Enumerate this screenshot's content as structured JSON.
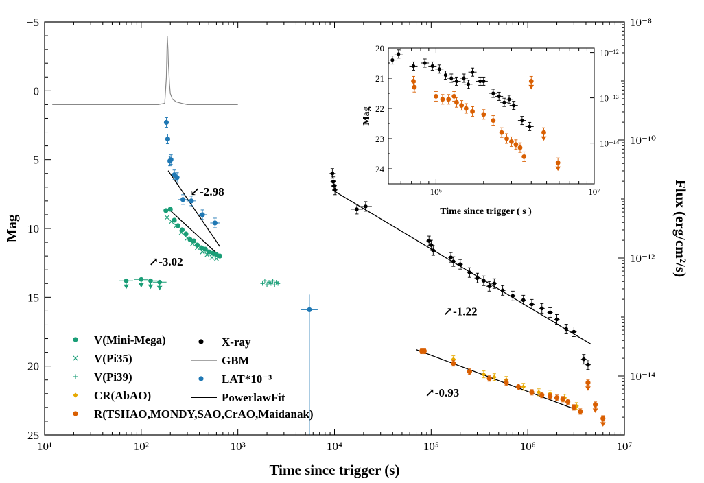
{
  "chart_data": {
    "type": "scatter",
    "title": "",
    "xlabel": "Time since trigger (s)",
    "ylabel": "Mag",
    "ylabel_right": "Flux (erg/cm²/s)",
    "xscale": "log",
    "xlim": [
      10,
      10000000
    ],
    "ylim": [
      -5,
      25
    ],
    "y_inverted": true,
    "right_ylim": [
      1e-15,
      1e-08
    ],
    "x_ticks": [
      10,
      100,
      1000,
      10000,
      100000,
      1000000,
      10000000
    ],
    "x_tick_labels": [
      "10¹",
      "10²",
      "10³",
      "10⁴",
      "10⁵",
      "10⁶",
      "10⁷"
    ],
    "y_ticks": [
      -5,
      0,
      5,
      10,
      15,
      20,
      25
    ],
    "y_tick_labels": [
      "−5",
      "0",
      "5",
      "10",
      "15",
      "20",
      "25"
    ],
    "right_ticks": [
      1e-14,
      1e-12,
      1e-10,
      1e-08
    ],
    "right_tick_labels": [
      "10⁻¹⁴",
      "10⁻¹²",
      "10⁻¹⁰",
      "10⁻⁸"
    ],
    "legend": {
      "position": "bottom-left",
      "col1": [
        {
          "label": "V(Mini-Mega)",
          "color": "#1a9e77",
          "marker": "dot"
        },
        {
          "label": "V(Pi35)",
          "color": "#1a9e77",
          "marker": "x"
        },
        {
          "label": "V(Pi39)",
          "color": "#1a9e77",
          "marker": "plus"
        },
        {
          "label": "CR(AbAO)",
          "color": "#e6a800",
          "marker": "diamond"
        },
        {
          "label": "R(TSHAO,MONDY,SAO,CrAO,Maidanak)",
          "color": "#d95f02",
          "marker": "dot"
        }
      ],
      "col2": [
        {
          "label": "X-ray",
          "color": "#000000",
          "marker": "dot"
        },
        {
          "label": "GBM",
          "color": "#888888",
          "marker": "line"
        },
        {
          "label": "LAT*10⁻³",
          "color": "#1f78b4",
          "marker": "dot"
        },
        {
          "label": "PowerlawFit",
          "color": "#000000",
          "marker": "line"
        }
      ]
    },
    "annotations": [
      {
        "text": "↙-2.98",
        "x": 480,
        "y": 7.6
      },
      {
        "text": "↗-3.02",
        "x": 180,
        "y": 12.7
      },
      {
        "text": "↗-1.22",
        "x": 200000,
        "y": 16.3
      },
      {
        "text": "↗-0.93",
        "x": 130000,
        "y": 22.2
      }
    ],
    "fits": [
      {
        "name": "LAT fit",
        "x": [
          190,
          650
        ],
        "y": [
          5.8,
          11.3
        ]
      },
      {
        "name": "V fit",
        "x": [
          200,
          650
        ],
        "y": [
          8.7,
          12.0
        ]
      },
      {
        "name": "X-ray fit",
        "x": [
          10000,
          4500000
        ],
        "y": [
          7.3,
          18.4
        ]
      },
      {
        "name": "R fit",
        "x": [
          70000,
          3000000
        ],
        "y": [
          18.8,
          23.1
        ]
      }
    ],
    "series": [
      {
        "name": "GBM",
        "color": "#888888",
        "type": "line",
        "x": [
          12,
          50,
          100,
          150,
          175,
          182,
          186,
          189,
          191,
          193,
          196,
          200,
          210,
          230,
          260,
          300,
          400,
          600,
          1000
        ],
        "y": [
          1.0,
          1.0,
          1.0,
          1.0,
          0.9,
          -1.0,
          -4.0,
          -3.0,
          -2.0,
          -1.5,
          -0.5,
          0.2,
          0.6,
          0.8,
          0.9,
          1.0,
          1.0,
          1.0,
          1.0
        ]
      },
      {
        "name": "LAT*10⁻³",
        "color": "#1f78b4",
        "x": [
          182,
          188,
          198,
          203,
          220,
          235,
          270,
          330,
          430,
          580,
          5500
        ],
        "y": [
          2.3,
          3.5,
          5.1,
          5.0,
          6.1,
          6.3,
          7.9,
          8.0,
          9.0,
          9.6,
          15.9
        ]
      },
      {
        "name": "V(Mini-Mega)",
        "color": "#1a9e77",
        "x": [
          180,
          200,
          220,
          240,
          265,
          290,
          320,
          350,
          380,
          420,
          460,
          500,
          550,
          600,
          650
        ],
        "y": [
          8.7,
          8.6,
          9.4,
          9.8,
          10.1,
          10.4,
          10.8,
          10.9,
          11.2,
          11.4,
          11.5,
          11.7,
          11.8,
          11.9,
          12.0
        ]
      },
      {
        "name": "V(Mini-Mega) upper limits",
        "color": "#1a9e77",
        "x": [
          70,
          100,
          125,
          155
        ],
        "y": [
          13.8,
          13.7,
          13.8,
          13.9
        ]
      },
      {
        "name": "V(Pi35)",
        "color": "#1a9e77",
        "x": [
          185,
          205,
          230,
          260,
          300,
          340,
          380,
          430,
          480,
          540,
          600
        ],
        "y": [
          9.2,
          9.5,
          9.8,
          10.3,
          10.7,
          11.1,
          11.4,
          11.7,
          11.9,
          12.1,
          12.2
        ]
      },
      {
        "name": "V(Pi39)",
        "color": "#1a9e77",
        "x": [
          1800,
          1900,
          2000,
          2100,
          2200,
          2300,
          2400,
          2500,
          2600
        ],
        "y": [
          14.0,
          13.8,
          14.1,
          13.9,
          14.0,
          13.8,
          14.1,
          13.9,
          14.0
        ]
      },
      {
        "name": "X-ray",
        "color": "#000000",
        "x": [
          9500,
          9700,
          9900,
          10100,
          17000,
          21000,
          95000,
          100000,
          105000,
          160000,
          170000,
          200000,
          250000,
          300000,
          350000,
          400000,
          450000,
          550000,
          700000,
          900000,
          1100000,
          1400000,
          1700000,
          2000000,
          2500000,
          3000000,
          3800000,
          4200000
        ],
        "y": [
          6.0,
          6.6,
          6.9,
          7.2,
          8.6,
          8.4,
          10.9,
          11.2,
          11.6,
          12.1,
          12.4,
          12.6,
          13.2,
          13.6,
          13.8,
          14.2,
          14.0,
          14.5,
          14.9,
          15.2,
          15.5,
          15.8,
          16.1,
          16.6,
          17.3,
          17.5,
          19.5,
          19.9
        ]
      },
      {
        "name": "CR(AbAO)",
        "color": "#e6a800",
        "x": [
          170000,
          350000,
          450000,
          600000,
          900000,
          1300000,
          1700000,
          2400000,
          3200000
        ],
        "y": [
          19.5,
          20.6,
          20.8,
          21.0,
          21.5,
          21.9,
          22.0,
          22.3,
          22.9
        ]
      },
      {
        "name": "R(TSHAO,MONDY,SAO,CrAO,Maidanak)",
        "color": "#d95f02",
        "x": [
          80000,
          85000,
          170000,
          250000,
          400000,
          600000,
          800000,
          1100000,
          1400000,
          1700000,
          2000000,
          2300000,
          2600000,
          3000000,
          3500000,
          4200000,
          5000000,
          6000000
        ],
        "y": [
          18.9,
          18.9,
          19.8,
          20.4,
          20.9,
          21.2,
          21.5,
          21.9,
          22.1,
          22.2,
          22.3,
          22.4,
          22.6,
          23.0,
          23.3,
          21.2,
          22.8,
          23.8
        ]
      }
    ],
    "inset": {
      "xlabel": "Time since trigger ( s )",
      "ylabel": "Mag",
      "xscale": "log",
      "xlim": [
        500000,
        10000000
      ],
      "ylim": [
        20,
        24.5
      ],
      "x_ticks": [
        1000000,
        10000000
      ],
      "x_tick_labels": [
        "10⁶",
        "10⁷"
      ],
      "y_ticks": [
        20,
        21,
        22,
        23,
        24
      ],
      "y_tick_labels": [
        "20",
        "21",
        "22",
        "23",
        "24"
      ],
      "right_ticks": [
        1e-14,
        1e-13,
        1e-12
      ],
      "right_tick_labels": [
        "10⁻¹⁴",
        "10⁻¹³",
        "10⁻¹²"
      ],
      "series": [
        {
          "name": "X-ray",
          "color": "#000000",
          "x": [
            530000,
            580000,
            720000,
            850000,
            950000,
            1050000,
            1150000,
            1250000,
            1350000,
            1500000,
            1600000,
            1700000,
            1900000,
            2000000,
            2300000,
            2500000,
            2700000,
            2900000,
            3100000,
            3500000,
            3900000
          ],
          "y": [
            20.4,
            20.2,
            20.6,
            20.5,
            20.6,
            20.7,
            20.9,
            21.0,
            21.1,
            21.0,
            21.2,
            20.8,
            21.1,
            21.1,
            21.5,
            21.6,
            21.8,
            21.7,
            21.9,
            22.4,
            22.6
          ]
        },
        {
          "name": "R",
          "color": "#d95f02",
          "x": [
            720000,
            730000,
            1000000,
            1100000,
            1200000,
            1300000,
            1350000,
            1450000,
            1550000,
            1700000,
            2000000,
            2300000,
            2600000,
            2800000,
            3000000,
            3200000,
            3400000,
            3600000,
            4000000,
            4800000,
            5900000
          ],
          "y": [
            21.1,
            21.3,
            21.6,
            21.7,
            21.7,
            21.6,
            21.8,
            21.9,
            22.0,
            22.1,
            22.2,
            22.4,
            22.8,
            23.0,
            23.1,
            23.2,
            23.3,
            23.6,
            21.1,
            22.8,
            23.8
          ]
        }
      ]
    }
  }
}
